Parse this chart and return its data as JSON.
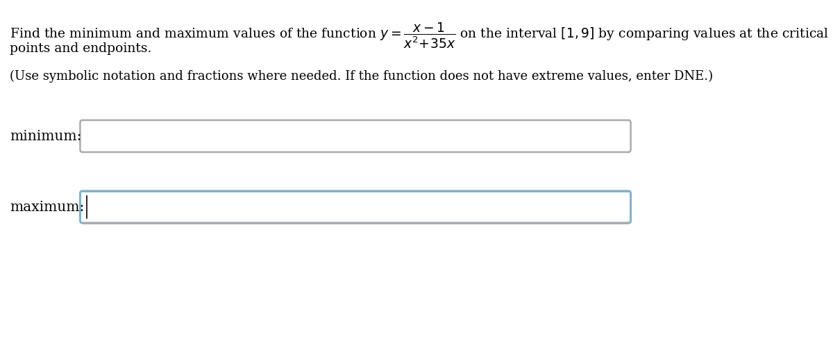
{
  "background_color": "#ffffff",
  "text_color": "#000000",
  "box_border_gray": "#aaaaaa",
  "box_border_blue": "#7bb3d4",
  "box_border_gray_bottom": "#999999",
  "box_fill_color": "#ffffff",
  "cursor_color": "#000000",
  "font_size_main": 13.5,
  "font_size_sub": 13.0,
  "font_size_label": 14.5,
  "label_minimum": "minimum:",
  "label_maximum": "maximum:",
  "line1": "Find the minimum and maximum values of the function $y = \\dfrac{x-1}{x^2\\!+\\!35x}$ on the interval $[1,9]$ by comparing values at the critical",
  "line2": "points and endpoints.",
  "subtitle": "(Use symbolic notation and fractions where needed. If the function does not have extreme values, enter DNE.)"
}
